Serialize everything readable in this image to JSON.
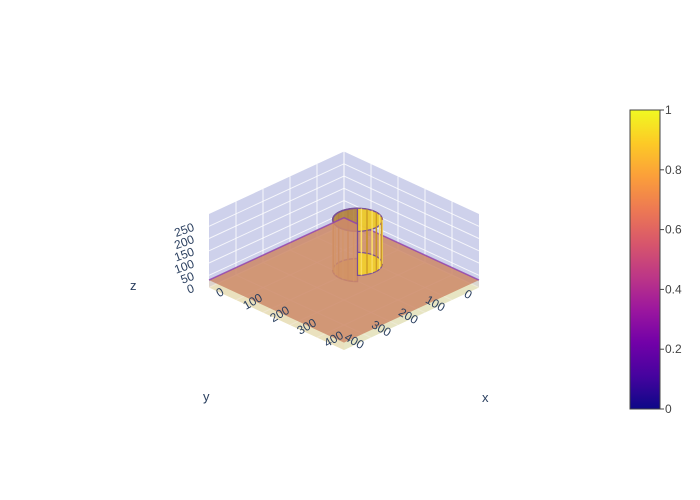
{
  "chart_data": {
    "type": "volume",
    "title": "",
    "axes": {
      "x": {
        "label": "x",
        "ticks": [
          0,
          100,
          200,
          300,
          400
        ],
        "range": [
          0,
          500
        ]
      },
      "y": {
        "label": "y",
        "ticks": [
          0,
          100,
          200,
          300,
          400
        ],
        "range": [
          0,
          500
        ]
      },
      "z": {
        "label": "z",
        "ticks": [
          0,
          50,
          100,
          150,
          200,
          250
        ],
        "range": [
          0,
          300
        ]
      }
    },
    "colorbar": {
      "ticks": [
        0,
        0.2,
        0.4,
        0.6,
        0.8,
        1
      ],
      "range": [
        0,
        1
      ],
      "colorscale": [
        "#0d0887",
        "#46039f",
        "#7201a8",
        "#9c179e",
        "#bd3786",
        "#d8576b",
        "#ed7953",
        "#fb9f3a",
        "#fdca26",
        "#f0f921"
      ]
    },
    "features": [
      {
        "name": "base slab",
        "value": 0.65,
        "z_range": [
          0,
          30
        ],
        "x_range": [
          0,
          500
        ],
        "y_range": [
          0,
          500
        ]
      },
      {
        "name": "column",
        "value": 0.9,
        "x_center": 210,
        "y_center": 160,
        "radius": 65,
        "z_range": [
          30,
          210
        ]
      }
    ],
    "grid": true,
    "colors": {
      "pane": "#c5c9e8",
      "pane_grid": "#ffffff",
      "floor": "#eef3c8",
      "slab": "#cd8a6a",
      "column": "#f2d02b",
      "column_edge": "#7a4e96"
    }
  }
}
